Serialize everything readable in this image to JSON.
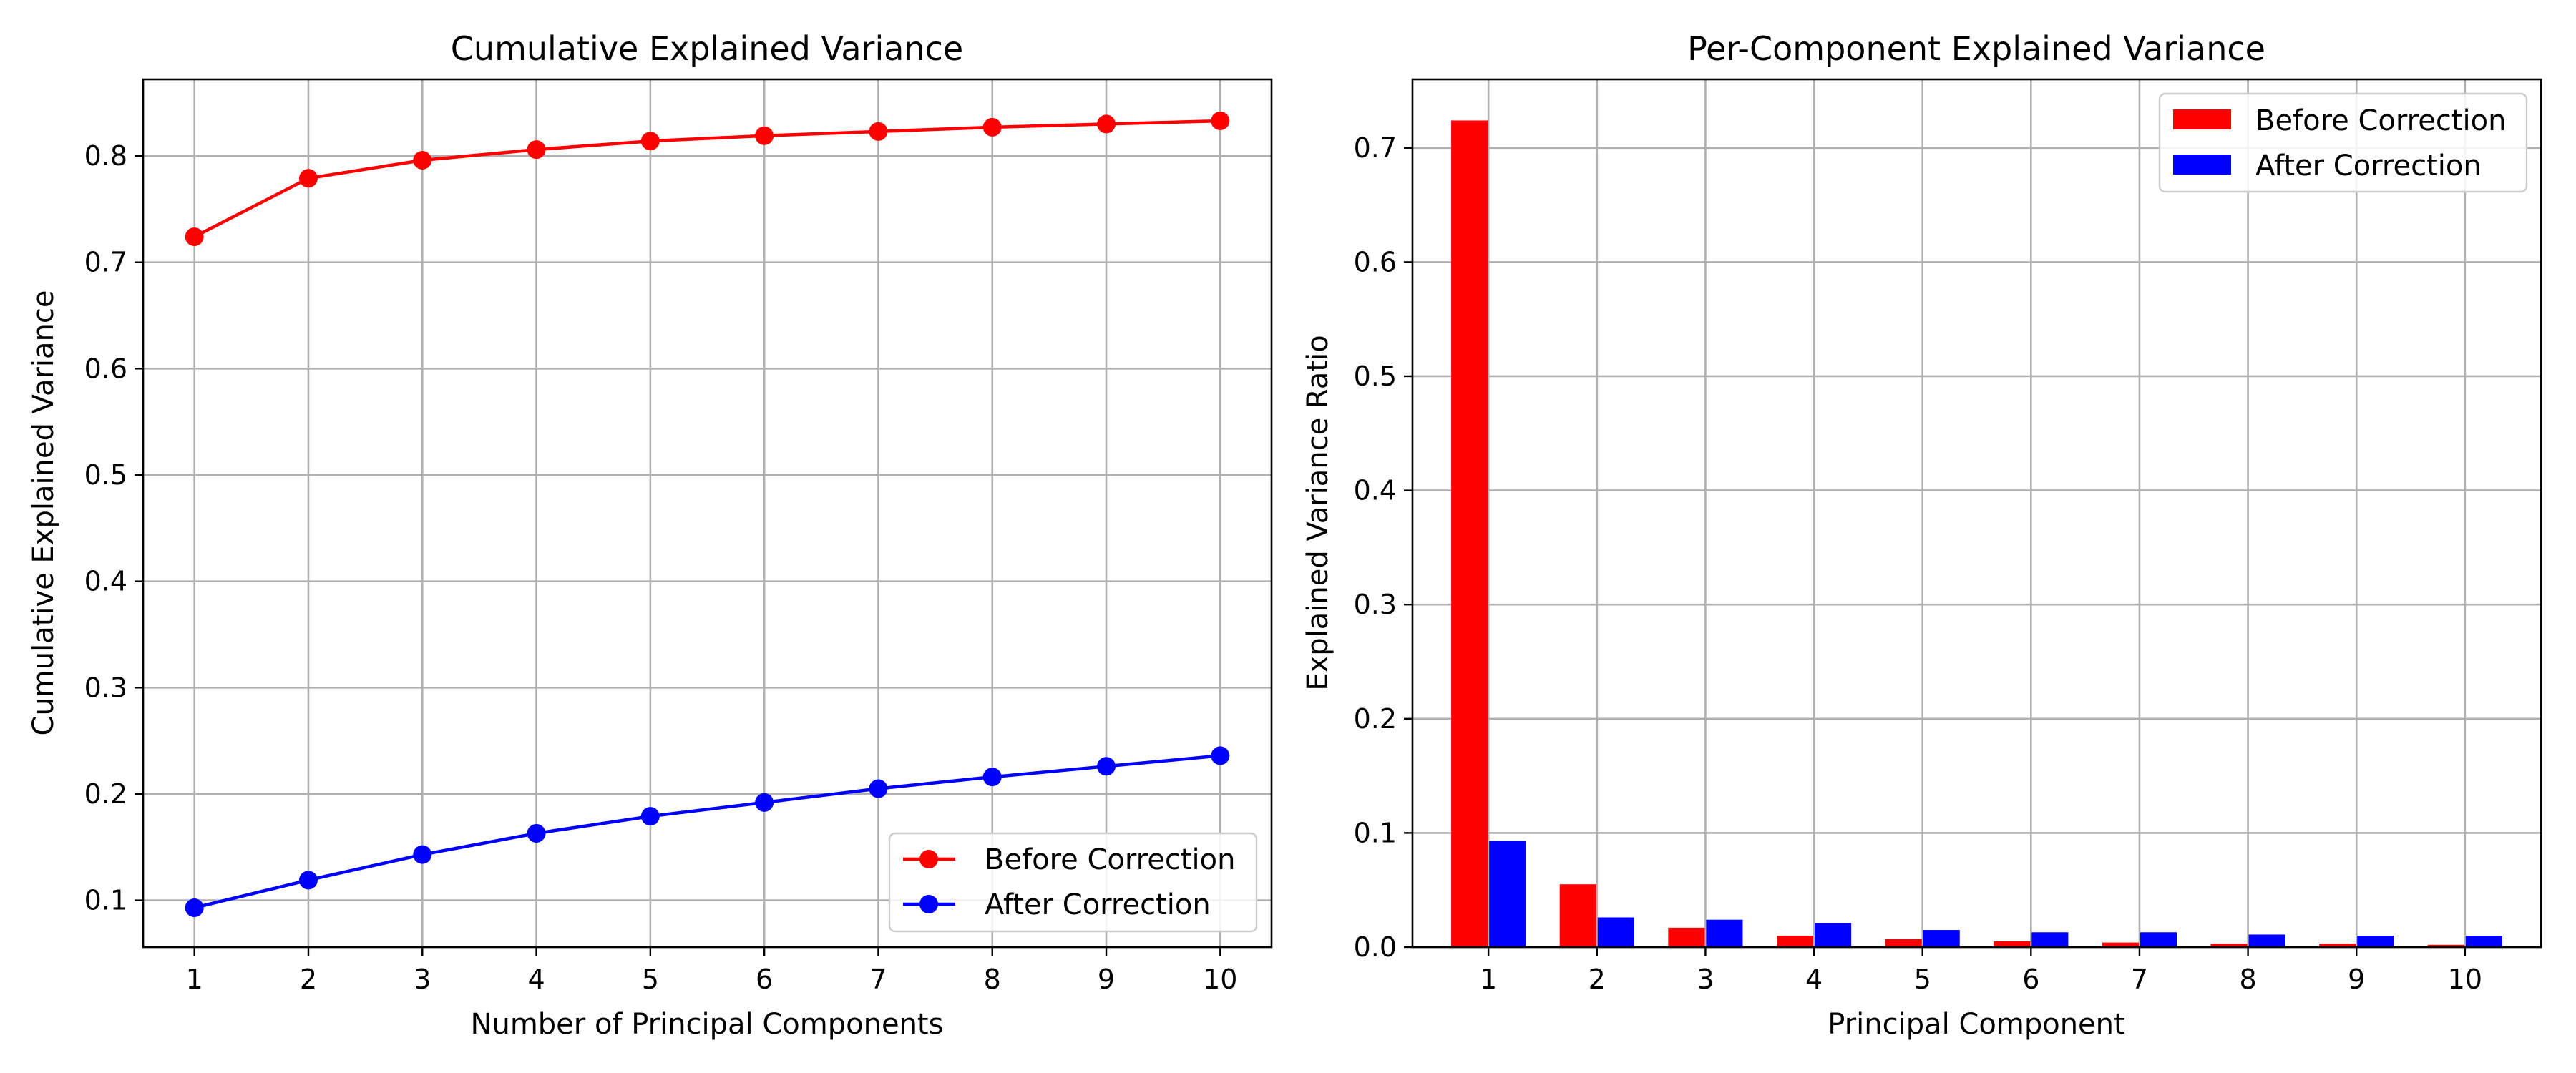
{
  "chart_data": [
    {
      "type": "line",
      "title": "Cumulative Explained Variance",
      "xlabel": "Number of Principal Components",
      "ylabel": "Cumulative Explained Variance",
      "x": [
        1,
        2,
        3,
        4,
        5,
        6,
        7,
        8,
        9,
        10
      ],
      "x_ticks": [
        "1",
        "2",
        "3",
        "4",
        "5",
        "6",
        "7",
        "8",
        "9",
        "10"
      ],
      "y_ticks": [
        "0.1",
        "0.2",
        "0.3",
        "0.4",
        "0.5",
        "0.6",
        "0.7",
        "0.8"
      ],
      "y_tick_values": [
        0.1,
        0.2,
        0.3,
        0.4,
        0.5,
        0.6,
        0.7,
        0.8
      ],
      "xlim": [
        0.55,
        10.45
      ],
      "ylim": [
        0.056,
        0.872
      ],
      "grid": true,
      "legend_position": "lower-right",
      "series": [
        {
          "name": "Before Correction",
          "color": "#ff0000",
          "marker": "circle",
          "values": [
            0.724,
            0.779,
            0.796,
            0.806,
            0.814,
            0.819,
            0.823,
            0.827,
            0.83,
            0.833
          ]
        },
        {
          "name": "After Correction",
          "color": "#0000ff",
          "marker": "circle",
          "values": [
            0.093,
            0.119,
            0.143,
            0.163,
            0.179,
            0.192,
            0.205,
            0.216,
            0.226,
            0.236
          ]
        }
      ]
    },
    {
      "type": "bar",
      "title": "Per-Component Explained Variance",
      "xlabel": "Principal Component",
      "ylabel": "Explained Variance Ratio",
      "categories": [
        "1",
        "2",
        "3",
        "4",
        "5",
        "6",
        "7",
        "8",
        "9",
        "10"
      ],
      "y_ticks": [
        "0.0",
        "0.1",
        "0.2",
        "0.3",
        "0.4",
        "0.5",
        "0.6",
        "0.7"
      ],
      "y_tick_values": [
        0.0,
        0.1,
        0.2,
        0.3,
        0.4,
        0.5,
        0.6,
        0.7
      ],
      "xlim": [
        0.3,
        10.7
      ],
      "ylim": [
        0,
        0.76
      ],
      "grid": true,
      "legend_position": "top-right",
      "series": [
        {
          "name": "Before Correction",
          "color": "#ff0000",
          "values": [
            0.724,
            0.055,
            0.017,
            0.01,
            0.007,
            0.005,
            0.004,
            0.003,
            0.003,
            0.002
          ]
        },
        {
          "name": "After Correction",
          "color": "#0000ff",
          "values": [
            0.093,
            0.026,
            0.024,
            0.021,
            0.015,
            0.013,
            0.013,
            0.011,
            0.01,
            0.01
          ]
        }
      ]
    }
  ]
}
